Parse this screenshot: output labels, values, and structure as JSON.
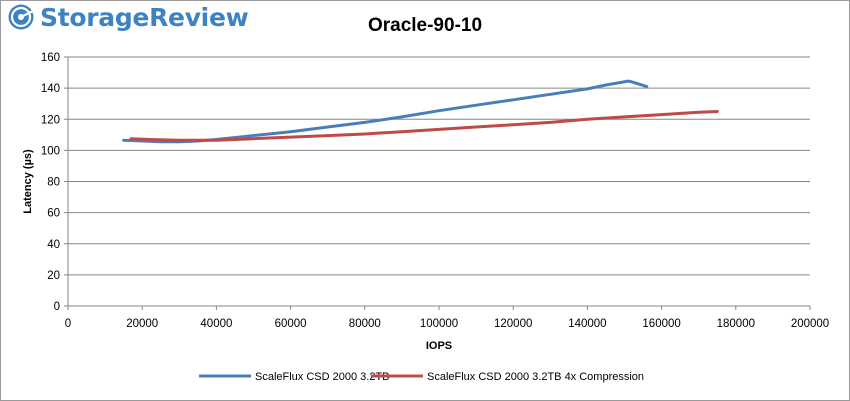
{
  "branding": {
    "logo_text": "StorageReview",
    "icon": "storage-review-disc-icon",
    "color": "#3d83c3"
  },
  "chart_data": {
    "type": "line",
    "title": "Oracle-90-10",
    "xlabel": "IOPS",
    "ylabel": "Latency (µs)",
    "xlim": [
      0,
      200000
    ],
    "ylim": [
      0,
      160
    ],
    "x_ticks": [
      0,
      20000,
      40000,
      60000,
      80000,
      100000,
      120000,
      140000,
      160000,
      180000,
      200000
    ],
    "x_tick_labels": [
      "0",
      "20000",
      "40000",
      "60000",
      "80000",
      "100000",
      "120000",
      "140000",
      "160000",
      "180000",
      "200000"
    ],
    "y_ticks": [
      0,
      20,
      40,
      60,
      80,
      100,
      120,
      140,
      160
    ],
    "y_tick_labels": [
      "0",
      "20",
      "40",
      "60",
      "80",
      "100",
      "120",
      "140",
      "160"
    ],
    "grid": "horizontal",
    "legend_position": "bottom",
    "series": [
      {
        "name": "ScaleFlux CSD 2000 3.2TB",
        "color": "#4a7ebb",
        "points": [
          [
            15000,
            106.5
          ],
          [
            20000,
            106
          ],
          [
            25000,
            105.5
          ],
          [
            30000,
            105.5
          ],
          [
            35000,
            106
          ],
          [
            40000,
            107
          ],
          [
            50000,
            109.5
          ],
          [
            60000,
            112
          ],
          [
            70000,
            115
          ],
          [
            80000,
            118
          ],
          [
            90000,
            121.5
          ],
          [
            100000,
            125.5
          ],
          [
            110000,
            129
          ],
          [
            120000,
            132.5
          ],
          [
            130000,
            136
          ],
          [
            140000,
            139.5
          ],
          [
            145000,
            142
          ],
          [
            151000,
            144.5
          ],
          [
            152000,
            144
          ],
          [
            156000,
            141
          ]
        ]
      },
      {
        "name": "ScaleFlux CSD 2000 3.2TB 4x Compression",
        "color": "#be4b48",
        "points": [
          [
            17000,
            107.5
          ],
          [
            22000,
            107
          ],
          [
            30000,
            106.5
          ],
          [
            40000,
            106.5
          ],
          [
            50000,
            107.5
          ],
          [
            60000,
            108.5
          ],
          [
            70000,
            109.5
          ],
          [
            80000,
            110.5
          ],
          [
            90000,
            112
          ],
          [
            100000,
            113.5
          ],
          [
            110000,
            115
          ],
          [
            120000,
            116.5
          ],
          [
            130000,
            118
          ],
          [
            140000,
            120
          ],
          [
            150000,
            121.5
          ],
          [
            160000,
            123
          ],
          [
            170000,
            124.5
          ],
          [
            175000,
            125
          ]
        ]
      }
    ]
  }
}
